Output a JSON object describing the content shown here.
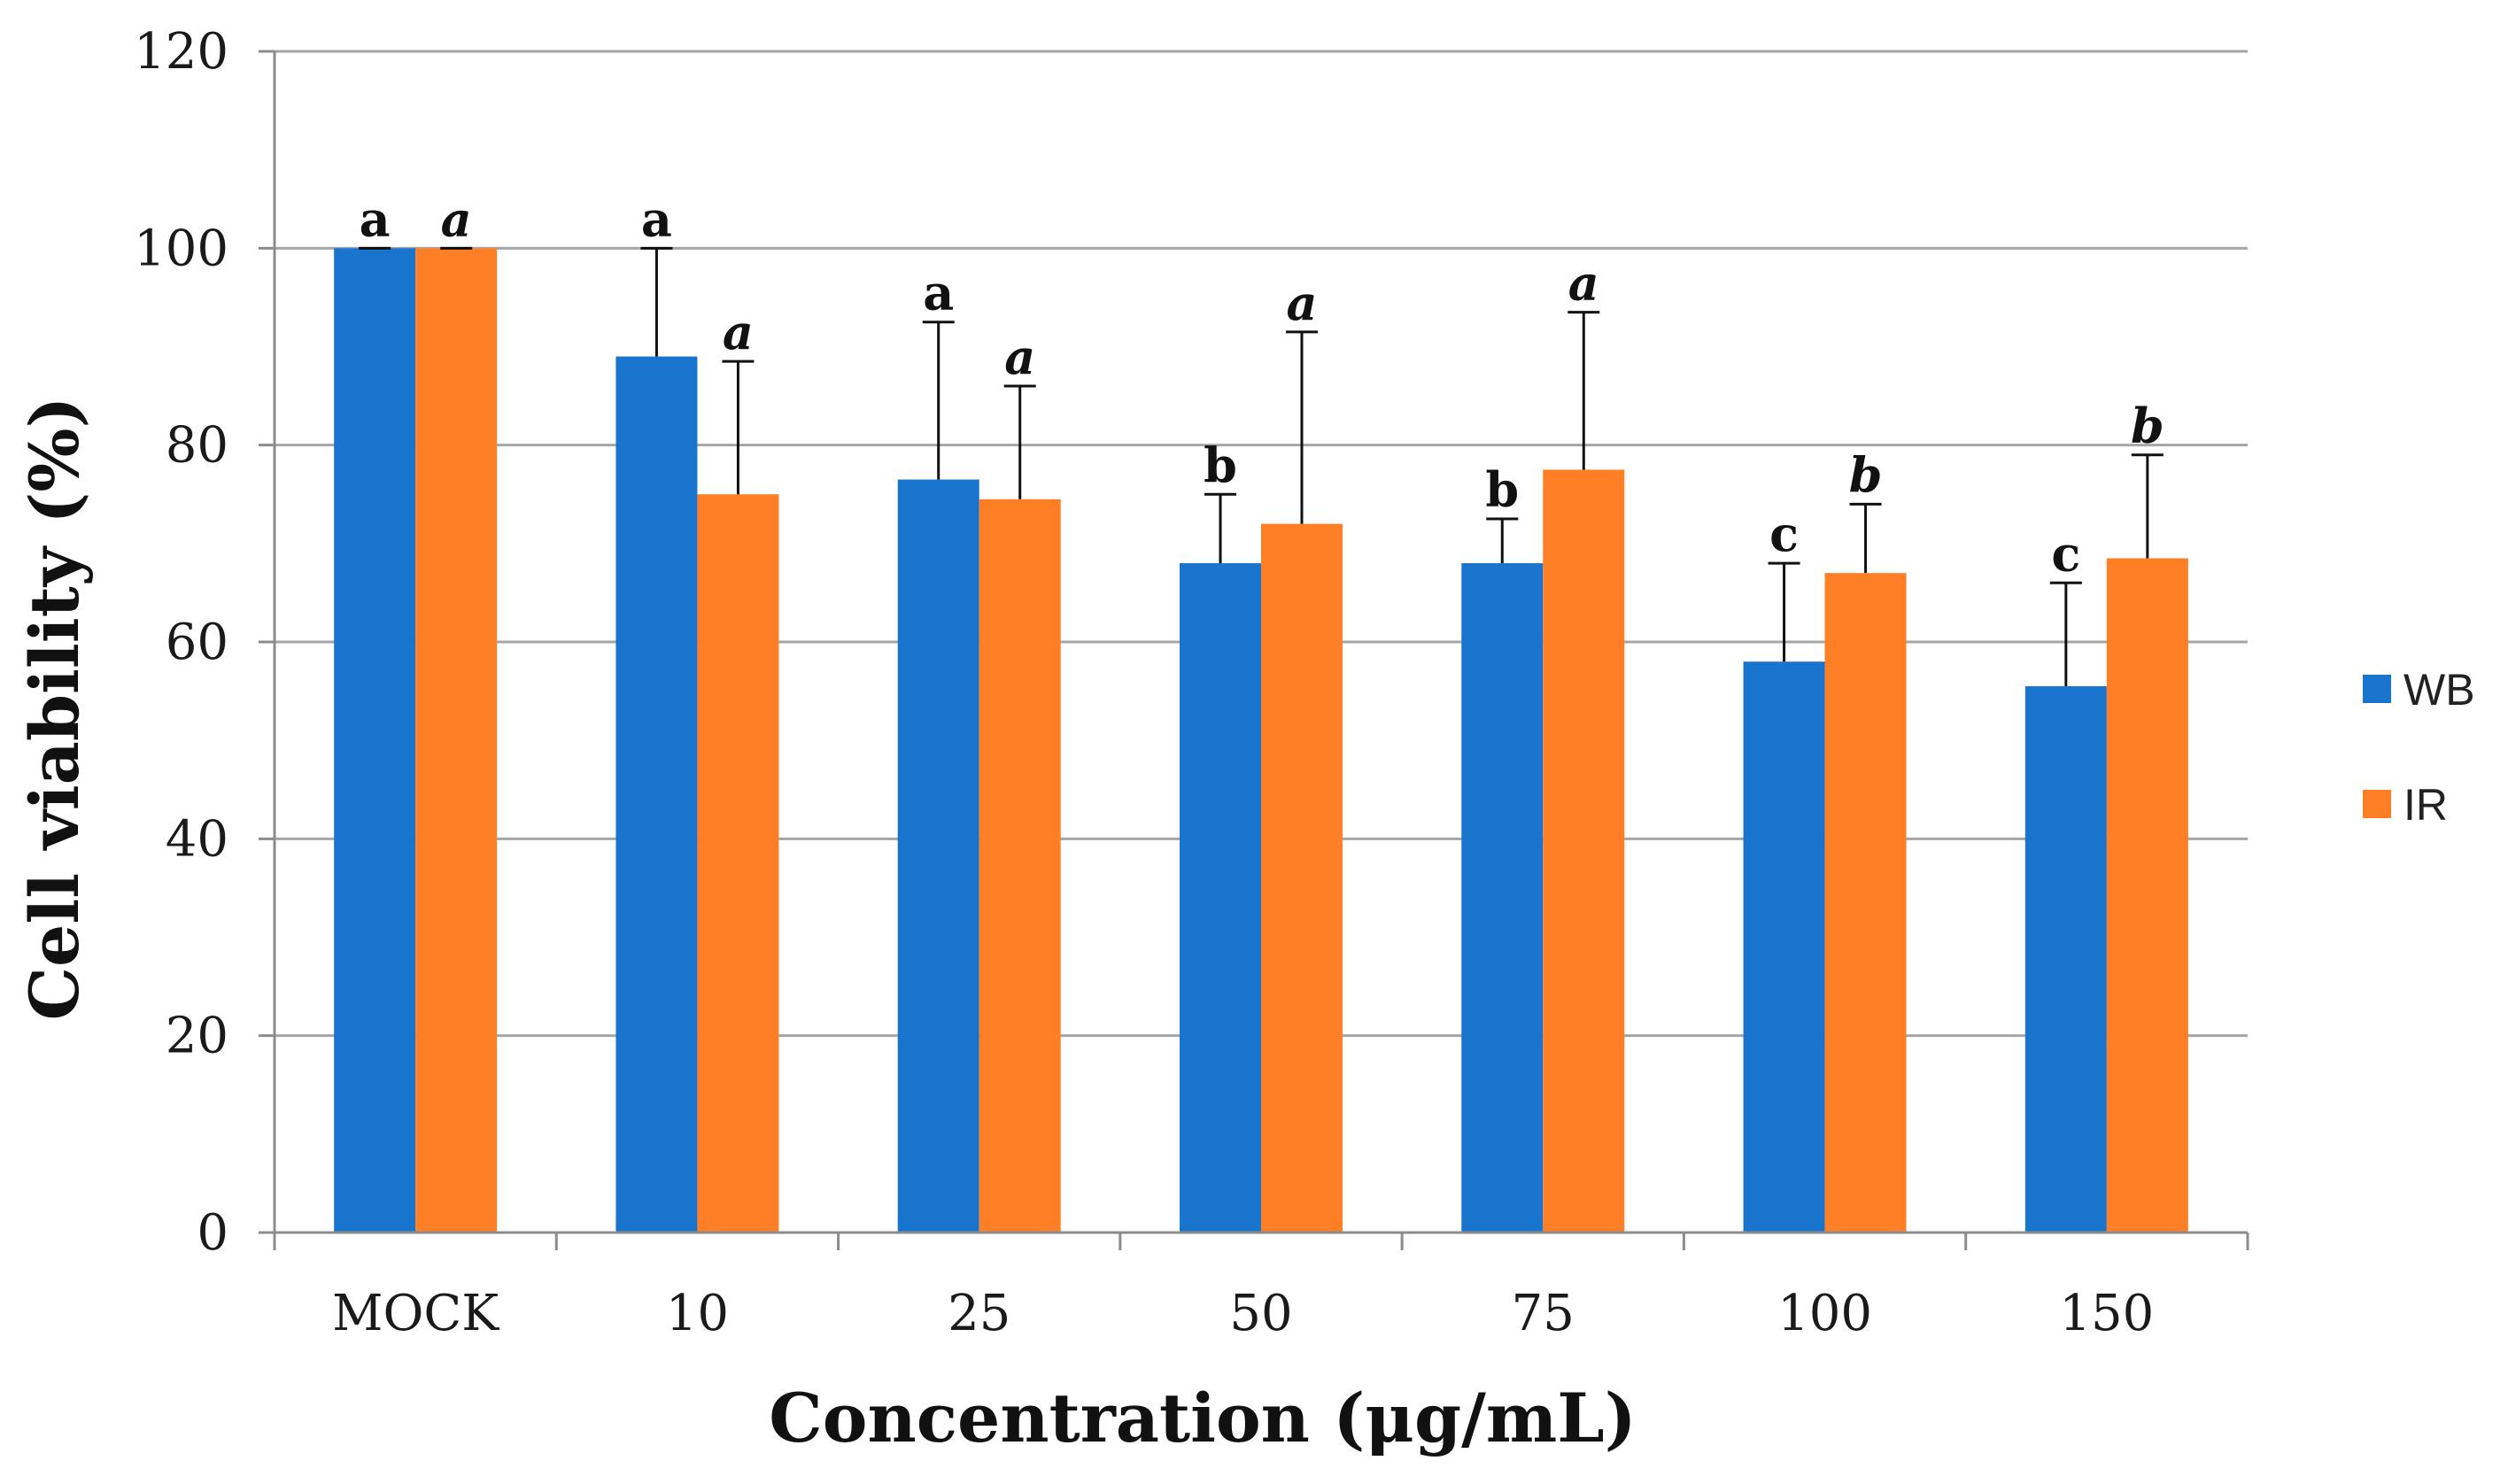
{
  "chart_data": {
    "type": "bar",
    "title": "",
    "xlabel": "Concentration (μg/mL)",
    "ylabel": "Cell viability (%)",
    "ylim": [
      0,
      120
    ],
    "yticks": [
      0,
      20,
      40,
      60,
      80,
      100,
      120
    ],
    "categories": [
      "MOCK",
      "10",
      "25",
      "50",
      "75",
      "100",
      "150"
    ],
    "grid": true,
    "legend_position": "right",
    "series": [
      {
        "name": "WB",
        "color": "#1874CD",
        "values": [
          100,
          89,
          76.5,
          68,
          68,
          58,
          55.5
        ],
        "errors": [
          0,
          11,
          16,
          7,
          4.5,
          10,
          10.5
        ],
        "significance": [
          "a",
          "a",
          "a",
          "b",
          "b",
          "c",
          "c"
        ],
        "significance_italic": false
      },
      {
        "name": "IR",
        "color": "#FF7F27",
        "values": [
          100,
          75,
          74.5,
          72,
          77.5,
          67,
          68.5
        ],
        "errors": [
          0,
          13.5,
          11.5,
          19.5,
          16,
          7,
          10.5
        ],
        "significance": [
          "a",
          "a",
          "a",
          "a",
          "a",
          "b",
          "b"
        ],
        "significance_italic": true
      }
    ]
  }
}
